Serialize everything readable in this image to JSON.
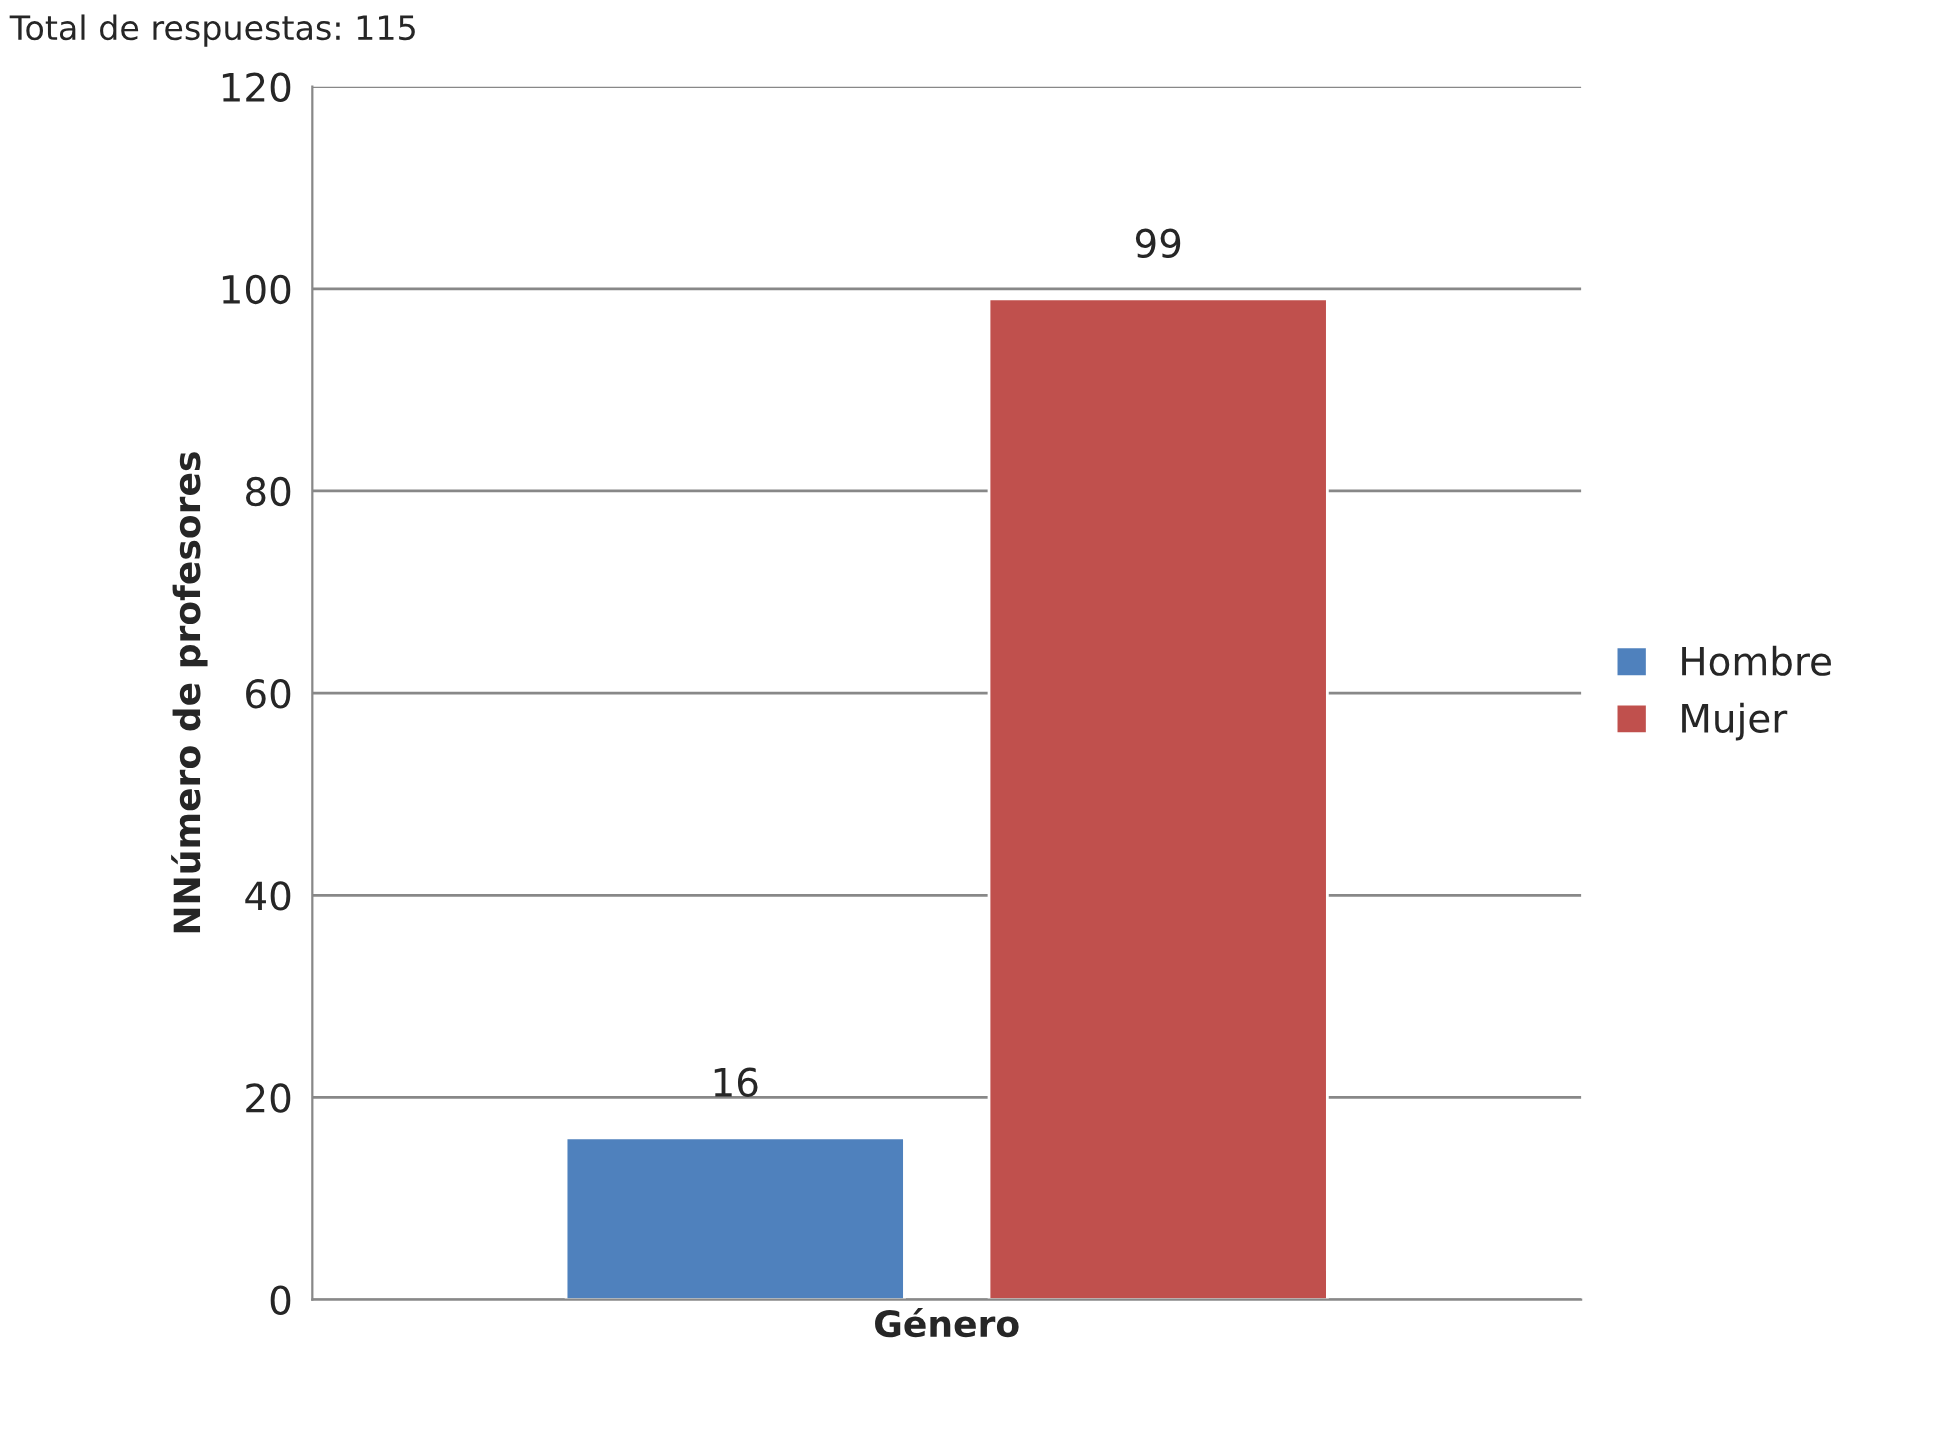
{
  "chart_data": {
    "type": "bar",
    "annotations": [
      "Total de respuestas: 115"
    ],
    "ylabel": "NNúmero de profesores",
    "categories": [
      "Género"
    ],
    "series": [
      {
        "name": "Hombre",
        "color": "#4f81bd",
        "values": [
          16
        ]
      },
      {
        "name": "Mujer",
        "color": "#c0504d",
        "values": [
          99
        ]
      }
    ],
    "ylim": [
      0,
      120
    ],
    "yticks": [
      0,
      20,
      40,
      60,
      80,
      100,
      120
    ],
    "grid": "y",
    "legend": "right",
    "data_labels": true
  }
}
